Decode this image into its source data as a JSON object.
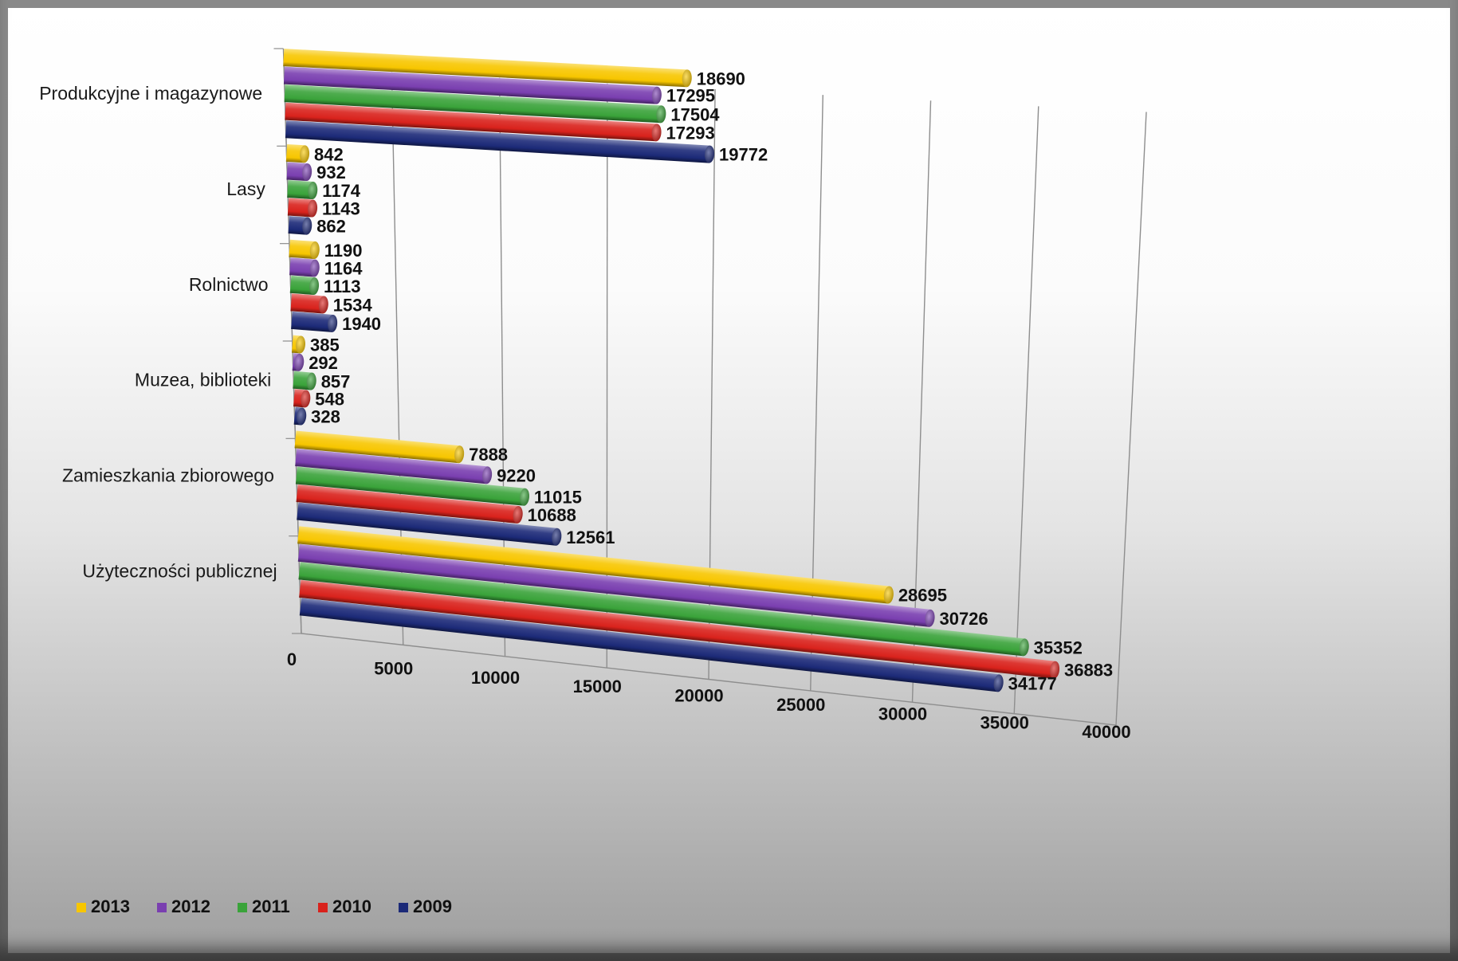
{
  "chart_data": {
    "type": "bar",
    "orientation": "horizontal",
    "style": "3d-cylinder",
    "categories": [
      "Produkcyjne i magazynowe",
      "Lasy",
      "Rolnictwo",
      "Muzea, biblioteki",
      "Zamieszkania zbiorowego",
      "Użyteczności publicznej"
    ],
    "series": [
      {
        "name": "2013",
        "color": "#f7c600",
        "values": [
          18690,
          842,
          1190,
          385,
          7888,
          28695
        ]
      },
      {
        "name": "2012",
        "color": "#7a3fb0",
        "values": [
          17295,
          932,
          1164,
          292,
          9220,
          30726
        ]
      },
      {
        "name": "2011",
        "color": "#3aa33a",
        "values": [
          17504,
          1174,
          1113,
          857,
          11015,
          35352
        ]
      },
      {
        "name": "2010",
        "color": "#d9221c",
        "values": [
          17293,
          1143,
          1534,
          548,
          10688,
          36883
        ]
      },
      {
        "name": "2009",
        "color": "#1c2a78",
        "values": [
          19772,
          862,
          1940,
          328,
          12561,
          34177
        ]
      }
    ],
    "xlim": [
      0,
      40000
    ],
    "xticks": [
      "0",
      "5000",
      "10000",
      "15000",
      "20000",
      "25000",
      "30000",
      "35000",
      "40000"
    ],
    "grid": true,
    "legend": "bottom-left"
  }
}
